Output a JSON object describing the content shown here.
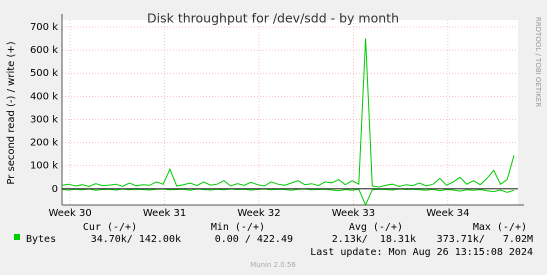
{
  "chart_data": {
    "type": "line",
    "title": "Disk throughput for /dev/sdd - by month",
    "ylabel": "Pr second read (-) / write (+)",
    "side_text": "RRDTOOL / TOBI OETIKER",
    "grid": true,
    "xlim": [
      0,
      33.8
    ],
    "xticks": [
      {
        "value": 0.6,
        "label": "Week 30"
      },
      {
        "value": 7.6,
        "label": "Week 31"
      },
      {
        "value": 14.6,
        "label": "Week 32"
      },
      {
        "value": 21.6,
        "label": "Week 33"
      },
      {
        "value": 28.6,
        "label": "Week 34"
      }
    ],
    "ylim": [
      -70000,
      730000
    ],
    "yticks": [
      0,
      {
        "value": 100000,
        "label": "100 k"
      },
      {
        "value": 200000,
        "label": "200 k"
      },
      {
        "value": 300000,
        "label": "300 k"
      },
      {
        "value": 400000,
        "label": "400 k"
      },
      {
        "value": 500000,
        "label": "500 k"
      },
      {
        "value": 600000,
        "label": "600 k"
      },
      {
        "value": 700000,
        "label": "700 k"
      }
    ],
    "x": [
      0,
      0.5,
      1,
      1.5,
      2,
      2.5,
      3,
      3.5,
      4,
      4.5,
      5,
      5.5,
      6,
      6.5,
      7,
      7.5,
      8,
      8.5,
      9,
      9.5,
      10,
      10.5,
      11,
      11.5,
      12,
      12.5,
      13,
      13.5,
      14,
      14.5,
      15,
      15.5,
      16,
      16.5,
      17,
      17.5,
      18,
      18.5,
      19,
      19.5,
      20,
      20.5,
      21,
      21.5,
      22,
      22.5,
      23,
      23.5,
      24,
      24.5,
      25,
      25.5,
      26,
      26.5,
      27,
      27.5,
      28,
      28.5,
      29,
      29.5,
      30,
      30.5,
      31,
      31.5,
      32,
      32.5,
      33,
      33.5
    ],
    "series": [
      {
        "name": "Bytes",
        "color": "#00cc00",
        "values": [
          15000,
          20000,
          12000,
          18000,
          10000,
          22000,
          14000,
          16000,
          20000,
          11000,
          25000,
          13000,
          18000,
          15000,
          30000,
          20000,
          85000,
          12000,
          18000,
          25000,
          14000,
          30000,
          16000,
          20000,
          35000,
          12000,
          22000,
          15000,
          28000,
          18000,
          12000,
          30000,
          20000,
          15000,
          25000,
          35000,
          18000,
          22000,
          14000,
          30000,
          26000,
          40000,
          18000,
          35000,
          20000,
          650000,
          12000,
          8000,
          15000,
          20000,
          10000,
          18000,
          14000,
          25000,
          12000,
          20000,
          45000,
          15000,
          30000,
          50000,
          20000,
          35000,
          18000,
          45000,
          80000,
          20000,
          40000,
          145000
        ]
      },
      {
        "color": "#00cc00",
        "values": [
          -3000,
          -5000,
          -2000,
          -4000,
          -1000,
          -6000,
          -3000,
          -2000,
          -5000,
          -1000,
          -4000,
          -2000,
          -3000,
          -5000,
          -2000,
          -1000,
          -4000,
          -3000,
          -2000,
          -6000,
          -1000,
          -3000,
          -5000,
          -2000,
          -4000,
          -1000,
          -3000,
          -2000,
          -5000,
          -3000,
          -1000,
          -4000,
          -2000,
          -3000,
          -6000,
          -2000,
          -1000,
          -4000,
          -3000,
          -2000,
          -5000,
          -8000,
          -3000,
          -6000,
          -2000,
          -70000,
          -4000,
          -2000,
          -3000,
          -5000,
          -1000,
          -3000,
          -2000,
          -4000,
          -6000,
          -2000,
          -8000,
          -3000,
          -5000,
          -10000,
          -4000,
          -6000,
          -3000,
          -8000,
          -12000,
          -5000,
          -15000,
          -6000
        ]
      }
    ],
    "legend_table": {
      "headers": [
        "Cur (-/+)",
        "Min (-/+)",
        "Avg (-/+)",
        "Max (-/+)"
      ],
      "rows": [
        [
          "Bytes",
          "34.70k/ 142.00k",
          "0.00 / 422.49",
          "2.13k/  18.31k",
          "373.71k/   7.02M"
        ]
      ]
    },
    "last_update": "Last update: Mon Aug 26 13:15:08 2024",
    "footer": "Munin 2.0.56"
  }
}
